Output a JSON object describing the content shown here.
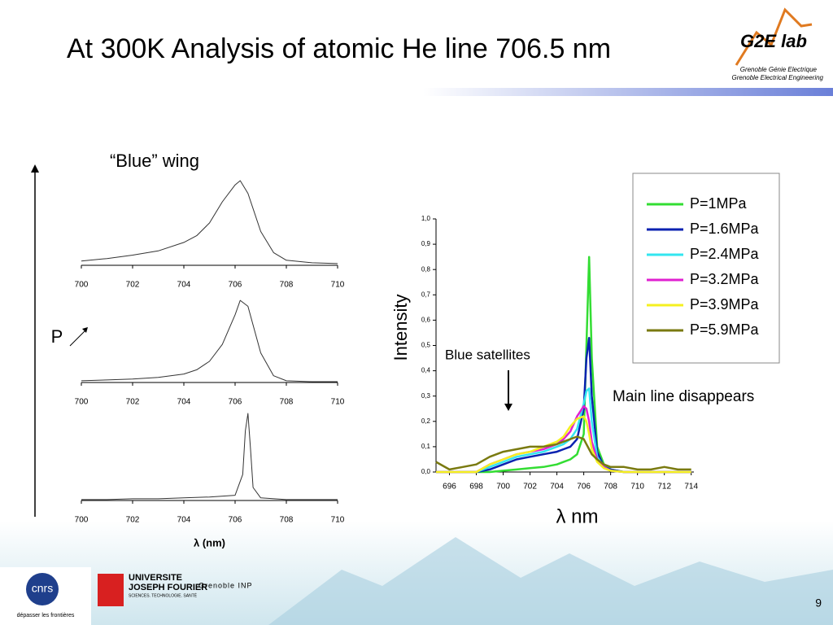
{
  "slide": {
    "title": "At 300K Analysis of atomic He line 706.5 nm",
    "page_number": "9",
    "pressure_label": "P",
    "logos": {
      "lab": "G2E lab",
      "lab_line1": "Grenoble  Génie  Electrique",
      "lab_line2": "Grenoble Electrical Engineering",
      "cnrs": "cnrs",
      "cnrs_motto": "dépasser les frontières",
      "ujf_line1": "UNIVERSITE",
      "ujf_line2": "JOSEPH FOURIER",
      "ujf_line3": "SCIENCES. TECHNOLOGIE. SANTÉ",
      "inp": "Grenoble INP"
    }
  },
  "chart_data": [
    {
      "type": "line",
      "annotation": "“Blue” wing",
      "color": "#333333",
      "x": [
        700,
        701,
        702,
        703,
        704,
        704.5,
        705,
        705.5,
        706,
        706.2,
        706.5,
        707,
        707.5,
        708,
        709,
        710
      ],
      "values": [
        0.05,
        0.08,
        0.12,
        0.17,
        0.27,
        0.35,
        0.5,
        0.75,
        0.95,
        1.0,
        0.85,
        0.4,
        0.15,
        0.06,
        0.03,
        0.02
      ],
      "xlim": [
        700,
        710
      ],
      "xticks": [
        700,
        702,
        704,
        706,
        708,
        710
      ],
      "ylim": [
        0,
        1
      ]
    },
    {
      "type": "line",
      "color": "#333333",
      "x": [
        700,
        701,
        702,
        703,
        704,
        704.5,
        705,
        705.5,
        706,
        706.2,
        706.5,
        707,
        707.5,
        708,
        709,
        710
      ],
      "values": [
        0.02,
        0.03,
        0.04,
        0.06,
        0.1,
        0.15,
        0.25,
        0.45,
        0.8,
        0.97,
        0.9,
        0.35,
        0.08,
        0.02,
        0.01,
        0.01
      ],
      "xlim": [
        700,
        710
      ],
      "xticks": [
        700,
        702,
        704,
        706,
        708,
        710
      ],
      "ylim": [
        0,
        1
      ]
    },
    {
      "type": "line",
      "color": "#333333",
      "xlabel": "λ (nm)",
      "x": [
        700,
        701,
        702,
        703,
        704,
        705,
        706,
        706.3,
        706.4,
        706.5,
        706.6,
        706.7,
        707,
        708,
        709,
        710
      ],
      "values": [
        0.01,
        0.01,
        0.02,
        0.02,
        0.03,
        0.04,
        0.06,
        0.3,
        0.8,
        1.0,
        0.6,
        0.15,
        0.03,
        0.01,
        0.01,
        0.01
      ],
      "xlim": [
        700,
        710
      ],
      "xticks": [
        700,
        702,
        704,
        706,
        708,
        710
      ],
      "ylim": [
        0,
        1
      ]
    },
    {
      "type": "line",
      "xlabel": "λ nm",
      "ylabel": "Intensity",
      "annotations": [
        "Blue satellites",
        "Main line disappears"
      ],
      "x": [
        695,
        696,
        697,
        698,
        699,
        700,
        701,
        702,
        703,
        704,
        704.5,
        705,
        705.5,
        706,
        706.2,
        706.4,
        706.6,
        707,
        707.5,
        708,
        709,
        710,
        711,
        712,
        713,
        714
      ],
      "series": [
        {
          "name": "P=1MPa",
          "color": "#33dd33",
          "values": [
            0,
            0,
            0,
            0,
            0,
            0.005,
            0.01,
            0.015,
            0.02,
            0.03,
            0.04,
            0.05,
            0.07,
            0.15,
            0.5,
            0.85,
            0.45,
            0.1,
            0.03,
            0.01,
            0,
            0,
            0,
            0,
            0,
            0
          ]
        },
        {
          "name": "P=1.6MPa",
          "color": "#0a22b0",
          "values": [
            0,
            0,
            0,
            0,
            0.01,
            0.03,
            0.05,
            0.06,
            0.07,
            0.08,
            0.09,
            0.1,
            0.13,
            0.25,
            0.45,
            0.53,
            0.3,
            0.08,
            0.02,
            0.01,
            0,
            0,
            0,
            0,
            0,
            0
          ]
        },
        {
          "name": "P=2.4MPa",
          "color": "#33e6f0",
          "values": [
            0,
            0,
            0,
            0,
            0.02,
            0.04,
            0.06,
            0.07,
            0.08,
            0.1,
            0.11,
            0.13,
            0.17,
            0.27,
            0.32,
            0.33,
            0.2,
            0.06,
            0.02,
            0.005,
            0,
            0,
            0,
            0,
            0,
            0
          ]
        },
        {
          "name": "P=3.2MPa",
          "color": "#e020d0",
          "values": [
            0,
            0,
            0,
            0,
            0.03,
            0.05,
            0.07,
            0.08,
            0.09,
            0.11,
            0.13,
            0.16,
            0.22,
            0.26,
            0.25,
            0.2,
            0.12,
            0.05,
            0.02,
            0.005,
            0,
            0,
            0,
            0,
            0,
            0
          ]
        },
        {
          "name": "P=3.9MPa",
          "color": "#f5f020",
          "values": [
            0,
            0,
            0,
            0,
            0.03,
            0.05,
            0.07,
            0.08,
            0.1,
            0.12,
            0.14,
            0.18,
            0.21,
            0.22,
            0.2,
            0.15,
            0.09,
            0.04,
            0.015,
            0.005,
            0,
            0,
            0,
            0,
            0,
            0
          ]
        },
        {
          "name": "P=5.9MPa",
          "color": "#7a7a10",
          "values": [
            0.04,
            0.01,
            0.02,
            0.03,
            0.06,
            0.08,
            0.09,
            0.1,
            0.1,
            0.11,
            0.12,
            0.13,
            0.14,
            0.13,
            0.11,
            0.09,
            0.07,
            0.05,
            0.03,
            0.02,
            0.02,
            0.01,
            0.01,
            0.02,
            0.01,
            0.01
          ]
        }
      ],
      "xlim": [
        695,
        714.2
      ],
      "xticks": [
        696,
        698,
        700,
        702,
        704,
        706,
        708,
        710,
        712,
        714
      ],
      "ylim": [
        0,
        1
      ],
      "yticks": [
        {
          "value": 0,
          "label": "0,0"
        },
        {
          "value": 0.1,
          "label": "0,1"
        },
        {
          "value": 0.2,
          "label": "0,2"
        },
        {
          "value": 0.3,
          "label": "0,3"
        },
        {
          "value": 0.4,
          "label": "0,4"
        },
        {
          "value": 0.5,
          "label": "0,5"
        },
        {
          "value": 0.6,
          "label": "0,6"
        },
        {
          "value": 0.7,
          "label": "0,7"
        },
        {
          "value": 0.8,
          "label": "0,8"
        },
        {
          "value": 0.9,
          "label": "0,9"
        },
        {
          "value": 1,
          "label": "1,0"
        }
      ]
    }
  ]
}
